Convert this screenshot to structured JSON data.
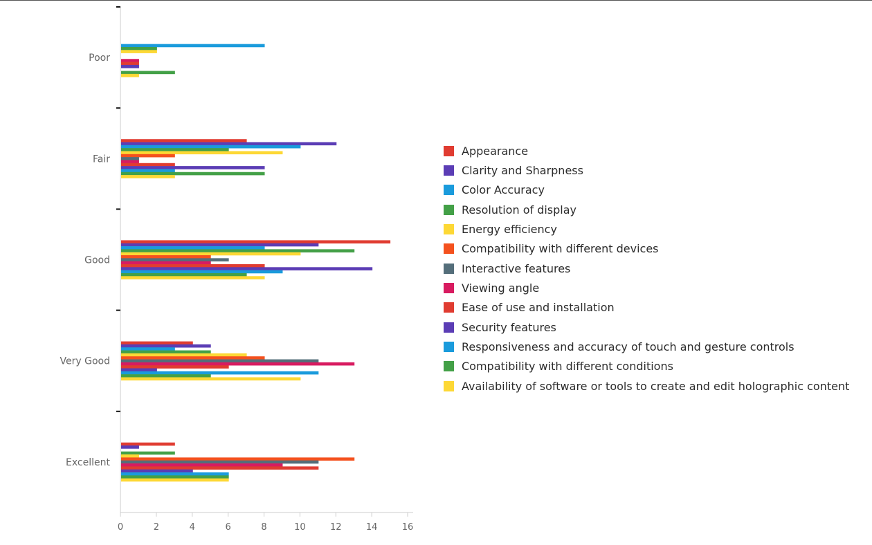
{
  "chart_data": {
    "type": "bar",
    "orientation": "horizontal",
    "title": "",
    "xlabel": "",
    "ylabel": "",
    "xlim": [
      0,
      16.5
    ],
    "x_ticks": [
      0,
      2,
      4,
      6,
      8,
      10,
      12,
      14,
      16
    ],
    "grid": false,
    "legend_position": "right",
    "categories": [
      "Poor",
      "Fair",
      "Good",
      "Very Good",
      "Excellent"
    ],
    "series": [
      {
        "name": "Appearance",
        "color": "#e03c31",
        "values": [
          0,
          7,
          15,
          4,
          3
        ]
      },
      {
        "name": "Clarity and Sharpness",
        "color": "#5b3db5",
        "values": [
          0,
          12,
          11,
          5,
          1
        ]
      },
      {
        "name": "Color Accuracy",
        "color": "#1a9bdc",
        "values": [
          8,
          10,
          8,
          3,
          0
        ]
      },
      {
        "name": "Resolution of display",
        "color": "#43a047",
        "values": [
          2,
          6,
          13,
          5,
          3
        ]
      },
      {
        "name": "Energy efficiency",
        "color": "#fdd835",
        "values": [
          2,
          9,
          10,
          7,
          1
        ]
      },
      {
        "name": "Compatibility with different devices",
        "color": "#f4511e",
        "values": [
          0,
          3,
          5,
          8,
          13
        ]
      },
      {
        "name": "Interactive features",
        "color": "#546e7a",
        "values": [
          0,
          1,
          6,
          11,
          11
        ]
      },
      {
        "name": "Viewing angle",
        "color": "#d81b60",
        "values": [
          1,
          1,
          5,
          13,
          9
        ]
      },
      {
        "name": "Ease of use and installation",
        "color": "#e03c31",
        "values": [
          1,
          3,
          8,
          6,
          11
        ]
      },
      {
        "name": "Security features",
        "color": "#5b3db5",
        "values": [
          1,
          8,
          14,
          2,
          4
        ]
      },
      {
        "name": "Responsiveness and accuracy of touch and gesture controls",
        "color": "#1a9bdc",
        "values": [
          0,
          3,
          9,
          11,
          6
        ]
      },
      {
        "name": "Compatibility with different conditions",
        "color": "#43a047",
        "values": [
          3,
          8,
          7,
          5,
          6
        ]
      },
      {
        "name": "Availability of software or tools to create and edit holographic content",
        "color": "#fdd835",
        "values": [
          1,
          3,
          8,
          10,
          6
        ]
      }
    ]
  }
}
